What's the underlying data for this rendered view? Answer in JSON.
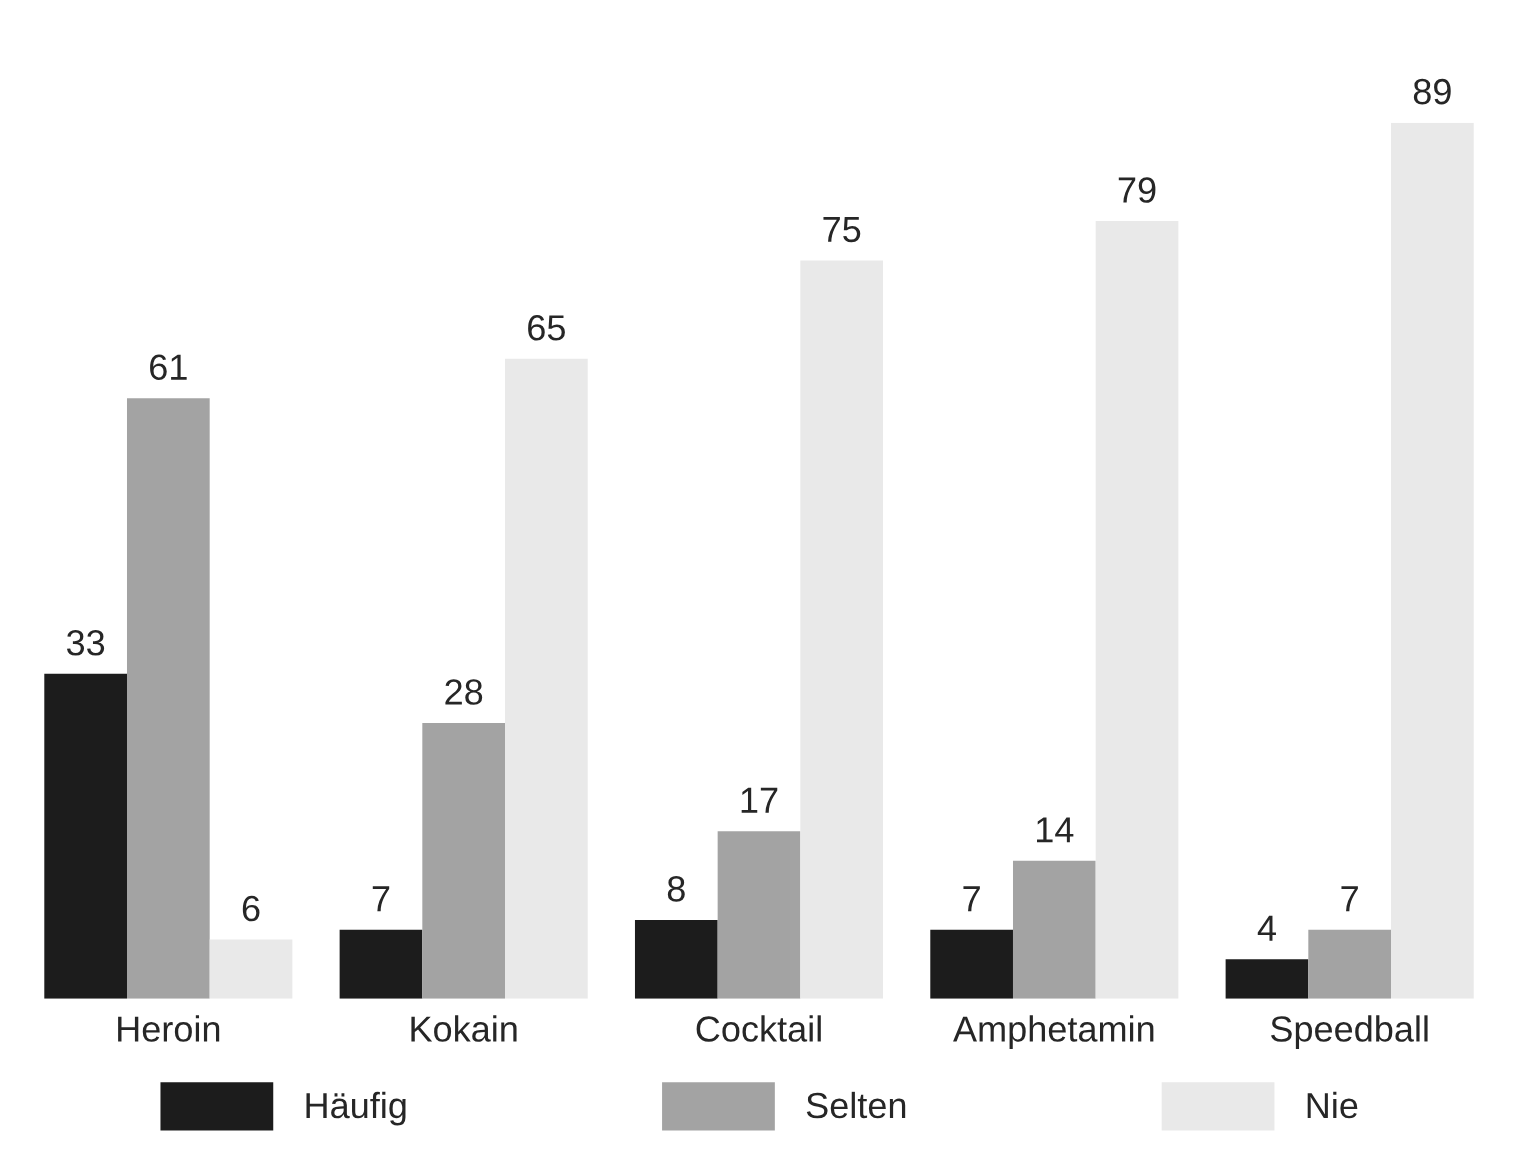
{
  "chart_data": {
    "type": "bar",
    "categories": [
      "Heroin",
      "Kokain",
      "Cocktail",
      "Amphetamin",
      "Speedball"
    ],
    "series": [
      {
        "name": "Häufig",
        "color": "#1c1c1c",
        "values": [
          33,
          7,
          8,
          7,
          4
        ]
      },
      {
        "name": "Selten",
        "color": "#a3a3a3",
        "values": [
          61,
          28,
          17,
          14,
          7
        ]
      },
      {
        "name": "Nie",
        "color": "#e9e9e9",
        "values": [
          6,
          65,
          75,
          79,
          89
        ]
      }
    ],
    "data_labels": true,
    "legend": "bottom",
    "grid": false
  }
}
